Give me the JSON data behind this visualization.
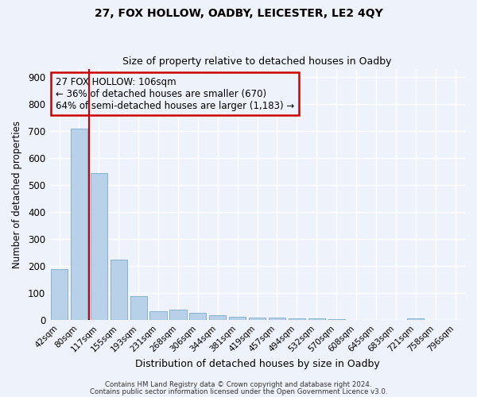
{
  "title1": "27, FOX HOLLOW, OADBY, LEICESTER, LE2 4QY",
  "title2": "Size of property relative to detached houses in Oadby",
  "xlabel": "Distribution of detached houses by size in Oadby",
  "ylabel": "Number of detached properties",
  "bin_labels": [
    "42sqm",
    "80sqm",
    "117sqm",
    "155sqm",
    "193sqm",
    "231sqm",
    "268sqm",
    "306sqm",
    "344sqm",
    "381sqm",
    "419sqm",
    "457sqm",
    "494sqm",
    "532sqm",
    "570sqm",
    "608sqm",
    "645sqm",
    "683sqm",
    "721sqm",
    "758sqm",
    "796sqm"
  ],
  "bar_values": [
    190,
    710,
    545,
    225,
    90,
    32,
    40,
    27,
    18,
    12,
    10,
    10,
    8,
    6,
    5,
    0,
    0,
    0,
    8,
    0,
    0
  ],
  "bar_color": "#b8d0e8",
  "bar_edge_color": "#7aaac8",
  "vline_x": 1.5,
  "vline_color": "#cc0000",
  "annotation_line1": "27 FOX HOLLOW: 106sqm",
  "annotation_line2": "← 36% of detached houses are smaller (670)",
  "annotation_line3": "64% of semi-detached houses are larger (1,183) →",
  "annotation_box_color": "#cc0000",
  "annotation_bg": "#eef2fa",
  "ylim": [
    0,
    930
  ],
  "yticks": [
    0,
    100,
    200,
    300,
    400,
    500,
    600,
    700,
    800,
    900
  ],
  "footer1": "Contains HM Land Registry data © Crown copyright and database right 2024.",
  "footer2": "Contains public sector information licensed under the Open Government Licence v3.0.",
  "background_color": "#eef2fa",
  "grid_color": "#ffffff",
  "title_fontsize": 10,
  "subtitle_fontsize": 9
}
